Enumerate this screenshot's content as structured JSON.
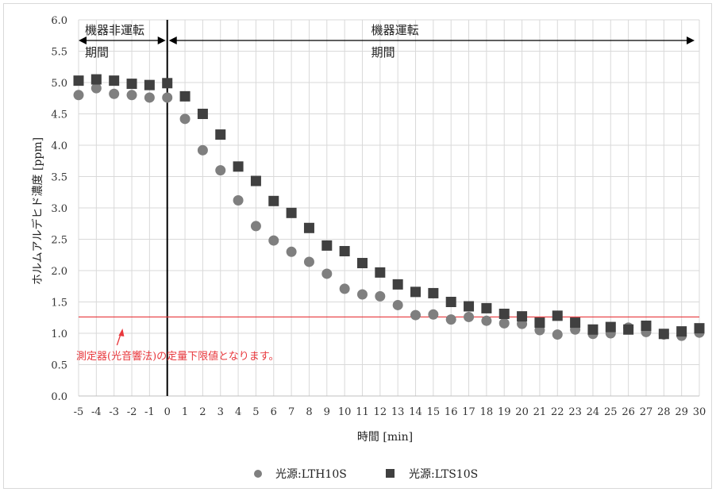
{
  "chart_data": {
    "type": "scatter",
    "title": "",
    "xlabel": "時間 [min]",
    "ylabel": "ホルムアルデヒド濃度 [ppm]",
    "xlim": [
      -5,
      30
    ],
    "ylim": [
      0,
      6
    ],
    "x_ticks": [
      -5,
      -4,
      -3,
      -2,
      -1,
      0,
      1,
      2,
      3,
      4,
      5,
      6,
      7,
      8,
      9,
      10,
      11,
      12,
      13,
      14,
      15,
      16,
      17,
      18,
      19,
      20,
      21,
      22,
      23,
      24,
      25,
      26,
      27,
      28,
      29,
      30
    ],
    "y_ticks": [
      "0.0",
      "0.5",
      "1.0",
      "1.5",
      "2.0",
      "2.5",
      "3.0",
      "3.5",
      "4.0",
      "4.5",
      "5.0",
      "5.5",
      "6.0"
    ],
    "grid": true,
    "legend_position": "bottom",
    "series": [
      {
        "name": "光源:LTH10S",
        "marker": "circle",
        "color": "#7f7f7f",
        "x": [
          -5,
          -4,
          -3,
          -2,
          -1,
          0,
          1,
          2,
          3,
          4,
          5,
          6,
          7,
          8,
          9,
          10,
          11,
          12,
          13,
          14,
          15,
          16,
          17,
          18,
          19,
          20,
          21,
          22,
          23,
          24,
          25,
          26,
          27,
          28,
          29,
          30
        ],
        "y": [
          4.8,
          4.91,
          4.82,
          4.8,
          4.76,
          4.76,
          4.42,
          3.92,
          3.6,
          3.12,
          2.71,
          2.48,
          2.3,
          2.14,
          1.95,
          1.71,
          1.62,
          1.59,
          1.45,
          1.29,
          1.3,
          1.22,
          1.26,
          1.2,
          1.16,
          1.15,
          1.05,
          0.98,
          1.06,
          0.99,
          1.0,
          1.09,
          1.02,
          0.98,
          0.96,
          1.01
        ]
      },
      {
        "name": "光源:LTS10S",
        "marker": "square",
        "color": "#404040",
        "x": [
          -5,
          -4,
          -3,
          -2,
          -1,
          0,
          1,
          2,
          3,
          4,
          5,
          6,
          7,
          8,
          9,
          10,
          11,
          12,
          13,
          14,
          15,
          16,
          17,
          18,
          19,
          20,
          21,
          22,
          23,
          24,
          25,
          26,
          27,
          28,
          29,
          30
        ],
        "y": [
          5.03,
          5.05,
          5.03,
          4.98,
          4.96,
          4.99,
          4.78,
          4.5,
          4.17,
          3.66,
          3.43,
          3.11,
          2.92,
          2.68,
          2.4,
          2.31,
          2.12,
          1.97,
          1.78,
          1.66,
          1.64,
          1.5,
          1.43,
          1.4,
          1.31,
          1.27,
          1.17,
          1.28,
          1.17,
          1.06,
          1.1,
          1.06,
          1.12,
          0.99,
          1.03,
          1.08
        ]
      }
    ],
    "vertical_marker": {
      "x": 0
    },
    "limit_line": {
      "y": 1.26,
      "color": "#e8383d",
      "label": "測定器(光音響法)の定量下限値となります。"
    },
    "annotations": {
      "before": {
        "line1": "機器非運転",
        "line2": "期間"
      },
      "after": {
        "line1": "機器運転",
        "line2": "期間"
      }
    }
  }
}
